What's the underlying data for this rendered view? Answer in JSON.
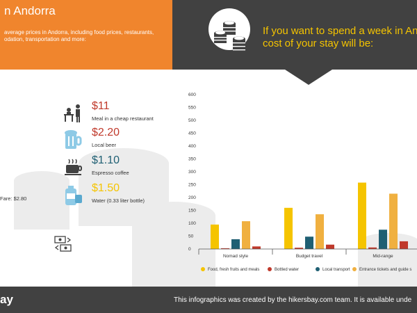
{
  "header": {
    "title": "n Andorra",
    "description": "average prices in Andorra, including food prices, restaurants, odation, transportation and more:",
    "headline_line1": "If you want to spend a week in And",
    "headline_line2": "cost of your stay will be:"
  },
  "prices": [
    {
      "price": "$11",
      "label": "Meal in a cheap restaurant",
      "color": "#c0392b",
      "icon": "restaurant-icon"
    },
    {
      "price": "$2.20",
      "label": "Local beer",
      "color": "#c0392b",
      "icon": "beer-mug-icon"
    },
    {
      "price": "$1.10",
      "label": "Espresso coffee",
      "color": "#1f5f73",
      "icon": "coffee-cup-icon"
    },
    {
      "price": "$1.50",
      "label": "Water (0.33 liter bottle)",
      "color": "#f5c400",
      "icon": "water-bottle-icon"
    }
  ],
  "fare": "Fare: $2.80",
  "footer": {
    "brand": "ay",
    "credit": "This infographics was created by the hikersbay.com team. It is available unde"
  },
  "colors": {
    "orange": "#f0852d",
    "dark": "#414141",
    "yellow": "#f5c400",
    "red": "#c0392b",
    "teal": "#1f5f73",
    "gold": "#f0b040"
  },
  "chart_data": {
    "type": "bar",
    "categories": [
      "Nomad style",
      "Budget travel",
      "Mid-range"
    ],
    "series": [
      {
        "name": "Food, fresh fruits and meals",
        "color": "#f5c400",
        "values": [
          95,
          160,
          258
        ]
      },
      {
        "name": "Bottled water",
        "color": "#c0392b",
        "values": [
          3,
          5,
          6
        ]
      },
      {
        "name": "Local transport",
        "color": "#1f5f73",
        "values": [
          38,
          48,
          75
        ]
      },
      {
        "name": "Entrance tickets and guide s",
        "color": "#f0b040",
        "values": [
          108,
          135,
          215
        ]
      },
      {
        "name": "",
        "color": "#c0392b",
        "values": [
          10,
          17,
          30
        ]
      }
    ],
    "y_ticks": [
      "0",
      "50",
      "100",
      "150",
      "200",
      "250",
      "300",
      "350",
      "400",
      "450",
      "500",
      "550",
      "600"
    ],
    "ylim": [
      0,
      600
    ],
    "grid": false,
    "legend": "bottom"
  }
}
